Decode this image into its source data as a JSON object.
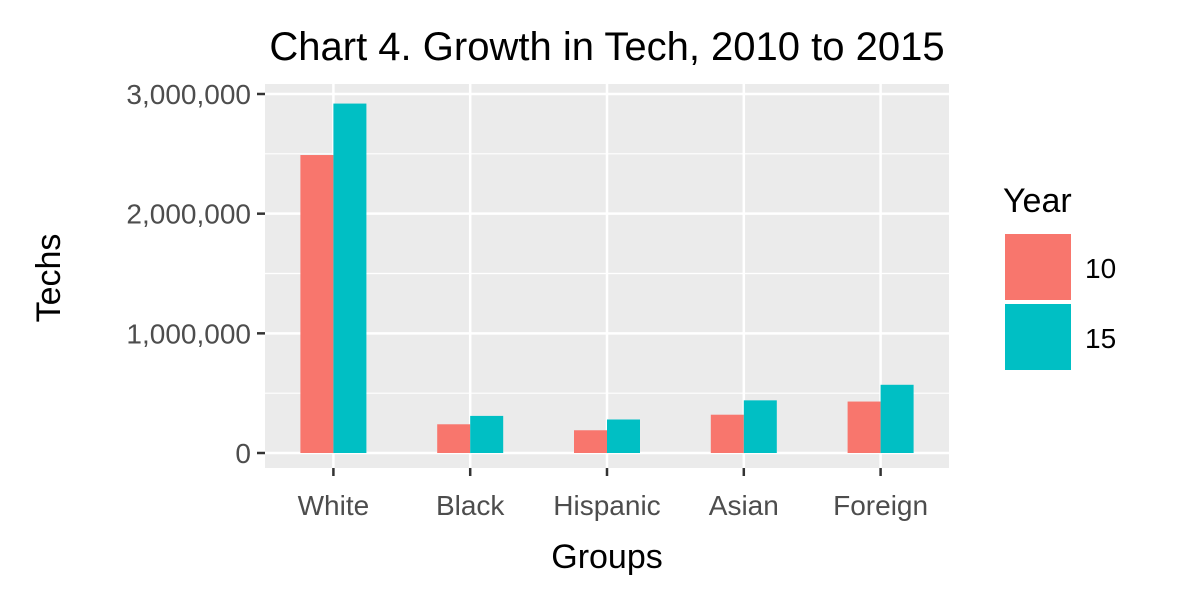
{
  "chart_data": {
    "type": "bar",
    "title": "Chart 4. Growth in Tech, 2010 to 2015",
    "xlabel": "Groups",
    "ylabel": "Techs",
    "categories": [
      "White",
      "Black",
      "Hispanic",
      "Asian",
      "Foreign"
    ],
    "series": [
      {
        "name": "10",
        "values": [
          2490000,
          240000,
          190000,
          320000,
          430000
        ],
        "color": "#F8766D"
      },
      {
        "name": "15",
        "values": [
          2920000,
          310000,
          280000,
          440000,
          570000
        ],
        "color": "#00BFC4"
      }
    ],
    "ylim": [
      0,
      3000000
    ],
    "yticks": [
      0,
      1000000,
      2000000,
      3000000
    ],
    "ytick_labels": [
      "0",
      "1,000,000",
      "2,000,000",
      "3,000,000"
    ],
    "legend": {
      "title": "Year",
      "position": "right"
    },
    "grid": true,
    "panel_color": "#EBEBEB",
    "grid_color": "#FFFFFF"
  }
}
